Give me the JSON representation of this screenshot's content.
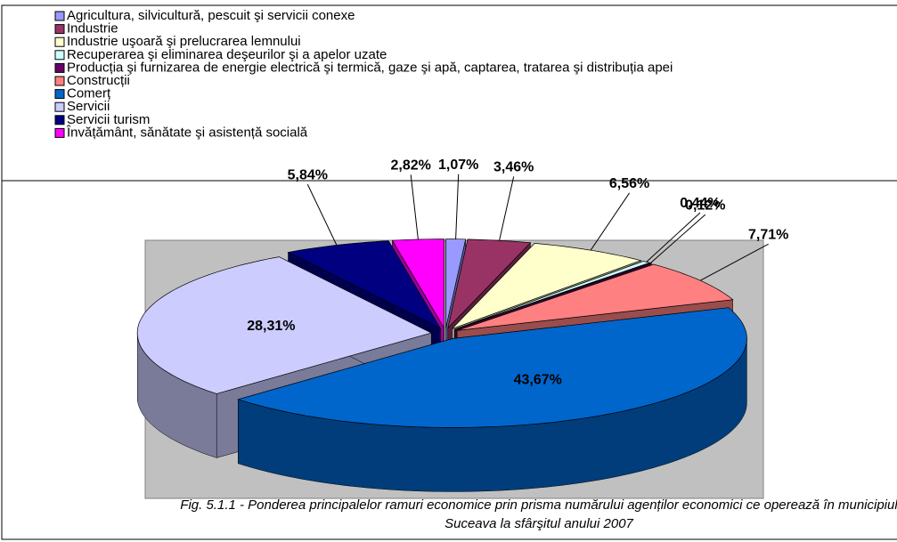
{
  "chart_data": {
    "type": "pie3d",
    "categories": [
      "Agricultura, silvicultură, pescuit şi servicii conexe",
      "Industrie",
      "Industrie uşoară şi prelucrarea lemnului",
      "Recuperarea şi eliminarea deşeurilor şi a apelor uzate",
      "Producția şi furnizarea de energie electrică şi termică, gaze şi apă, captarea, tratarea şi distribuția apei",
      "Construcții",
      "Comerț",
      "Servicii",
      "Servicii turism",
      "Învățământ, sănătate şi asistență socială"
    ],
    "values": [
      1.07,
      3.46,
      6.56,
      0.44,
      0.12,
      7.71,
      43.67,
      28.31,
      5.84,
      2.82
    ],
    "value_labels": [
      "1,07%",
      "3,46%",
      "6,56%",
      "0,44%",
      "0,12%",
      "7,71%",
      "43,67%",
      "28,31%",
      "5,84%",
      "2,82%"
    ],
    "colors": [
      "#9999ff",
      "#993366",
      "#ffffcc",
      "#ccffff",
      "#660066",
      "#ff8080",
      "#0066cc",
      "#ccccff",
      "#000080",
      "#ff00ff"
    ],
    "caption": "Fig. 5.1.1 - Ponderea principalelor ramuri economice prin prisma numărului agenților economici ce operează în municipiul Suceava la sfârşitul anului 2007"
  }
}
